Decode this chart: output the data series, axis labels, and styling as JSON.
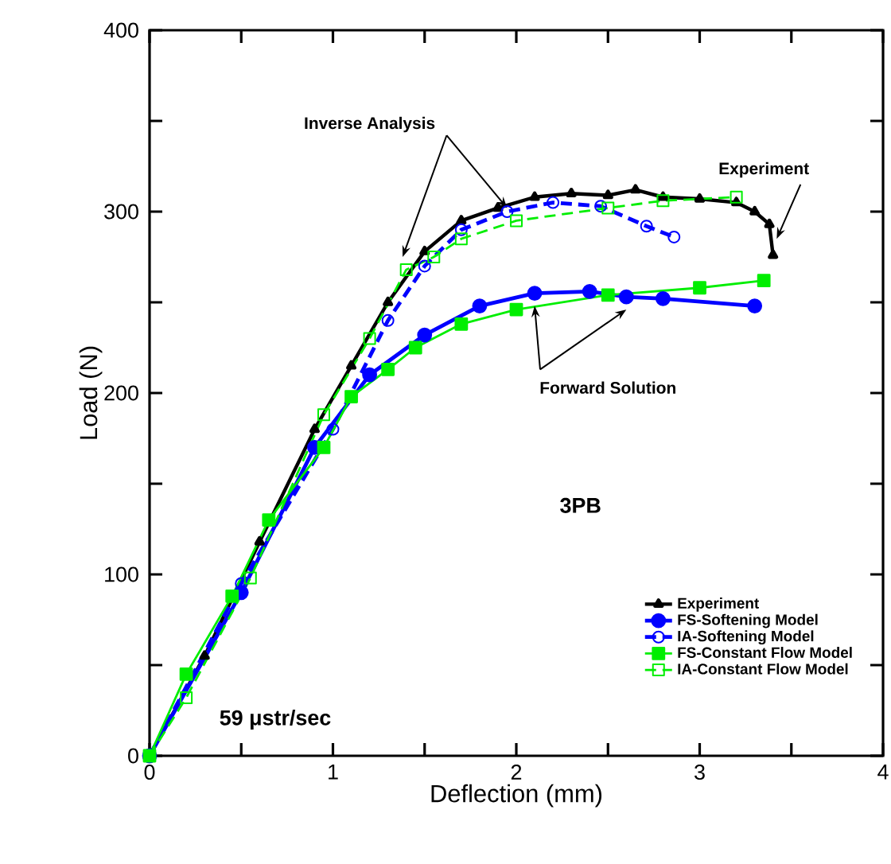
{
  "chart_data": {
    "type": "line",
    "xlabel": "Deflection (mm)",
    "ylabel": "Load (N)",
    "legend_title": "3PB",
    "xlim": [
      0,
      4
    ],
    "ylim": [
      0,
      400
    ],
    "xticks": [
      0,
      {
        "value": 0.5,
        "label": null
      },
      1,
      {
        "value": 1.5,
        "label": null
      },
      2,
      {
        "value": 2.5,
        "label": null
      },
      3,
      {
        "value": 3.5,
        "label": null
      },
      4
    ],
    "yticks": [
      0,
      {
        "value": 50,
        "label": null
      },
      100,
      {
        "value": 150,
        "label": null
      },
      200,
      {
        "value": 250,
        "label": null
      },
      300,
      {
        "value": 350,
        "label": null
      },
      400
    ],
    "grid": false,
    "legend": "bottom right",
    "annotations": [
      {
        "text": "Inverse Analysis",
        "x": 1.95,
        "y": 302
      },
      {
        "text": "Experiment",
        "x": 3.42,
        "y": 285
      },
      {
        "text": "Forward Solution",
        "x": 2.6,
        "y": 246
      },
      "59 μstr/sec"
    ],
    "series": [
      {
        "name": "Experiment",
        "color": "#000000",
        "marker": "triangle",
        "line_style": "solid",
        "x": [
          0,
          0.3,
          0.6,
          0.9,
          1.1,
          1.3,
          1.5,
          1.7,
          1.9,
          2.1,
          2.3,
          2.5,
          2.65,
          2.8,
          3.0,
          3.2,
          3.3,
          3.38,
          3.4
        ],
        "values": [
          0,
          55,
          118,
          180,
          215,
          250,
          278,
          295,
          302,
          308,
          310,
          309,
          312,
          308,
          307,
          305,
          300,
          293,
          276
        ]
      },
      {
        "name": "FS-Softening Model",
        "color": "#0000ff",
        "marker": "circle",
        "line_style": "solid",
        "x": [
          0,
          0.5,
          0.9,
          1.2,
          1.5,
          1.8,
          2.1,
          2.4,
          2.6,
          2.8,
          3.3
        ],
        "values": [
          0,
          90,
          170,
          210,
          232,
          248,
          255,
          256,
          253,
          252,
          248
        ]
      },
      {
        "name": "IA-Softening Model",
        "color": "#0000ff",
        "marker": "circle",
        "line_style": "dashed",
        "x": [
          0,
          0.5,
          1.0,
          1.3,
          1.5,
          1.7,
          1.95,
          2.2,
          2.46,
          2.71,
          2.86
        ],
        "values": [
          0,
          95,
          180,
          240,
          270,
          290,
          300,
          305,
          303,
          292,
          286
        ]
      },
      {
        "name": "FS-Constant Flow Model",
        "color": "#00ee00",
        "marker": "square",
        "line_style": "solid",
        "x": [
          0,
          0.2,
          0.45,
          0.65,
          0.95,
          1.1,
          1.3,
          1.45,
          1.7,
          2.0,
          2.5,
          3.0,
          3.35
        ],
        "values": [
          0,
          45,
          88,
          130,
          170,
          198,
          213,
          225,
          238,
          246,
          254,
          258,
          262
        ]
      },
      {
        "name": "IA-Constant Flow Model",
        "color": "#00ee00",
        "marker": "square",
        "line_style": "dashed",
        "x": [
          0,
          0.2,
          0.55,
          0.95,
          1.2,
          1.4,
          1.55,
          1.7,
          2.0,
          2.5,
          2.8,
          3.2
        ],
        "values": [
          0,
          32,
          98,
          188,
          230,
          268,
          275,
          285,
          295,
          302,
          306,
          308
        ]
      }
    ]
  }
}
